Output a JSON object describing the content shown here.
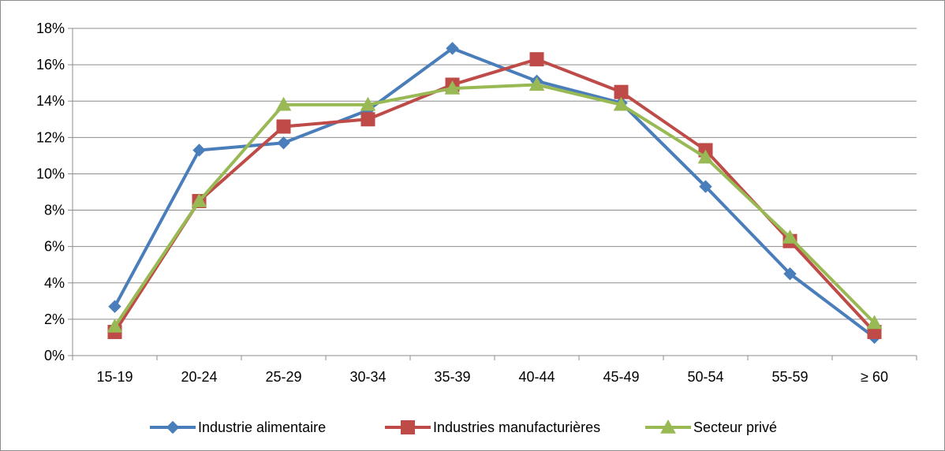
{
  "chart_data": {
    "type": "line",
    "title": "",
    "xlabel": "",
    "ylabel": "",
    "categories": [
      "15-19",
      "20-24",
      "25-29",
      "30-34",
      "35-39",
      "40-44",
      "45-49",
      "50-54",
      "55-59",
      "≥ 60"
    ],
    "ylim": [
      0,
      18
    ],
    "y_ticks": [
      "0%",
      "2%",
      "4%",
      "6%",
      "8%",
      "10%",
      "12%",
      "14%",
      "16%",
      "18%"
    ],
    "grid": "horizontal",
    "legend_position": "bottom",
    "series": [
      {
        "name": "Industrie alimentaire",
        "color": "#4a7ebb",
        "marker": "diamond",
        "values": [
          2.7,
          11.3,
          11.7,
          13.5,
          16.9,
          15.1,
          13.9,
          9.3,
          4.5,
          1.0
        ]
      },
      {
        "name": "Industries manufacturières",
        "color": "#be4b48",
        "marker": "square",
        "values": [
          1.3,
          8.5,
          12.6,
          13.0,
          14.9,
          16.3,
          14.5,
          11.3,
          6.3,
          1.3
        ]
      },
      {
        "name": "Secteur privé",
        "color": "#98b954",
        "marker": "triangle",
        "values": [
          1.6,
          8.5,
          13.8,
          13.8,
          14.7,
          14.9,
          13.8,
          10.9,
          6.5,
          1.8
        ]
      }
    ]
  }
}
